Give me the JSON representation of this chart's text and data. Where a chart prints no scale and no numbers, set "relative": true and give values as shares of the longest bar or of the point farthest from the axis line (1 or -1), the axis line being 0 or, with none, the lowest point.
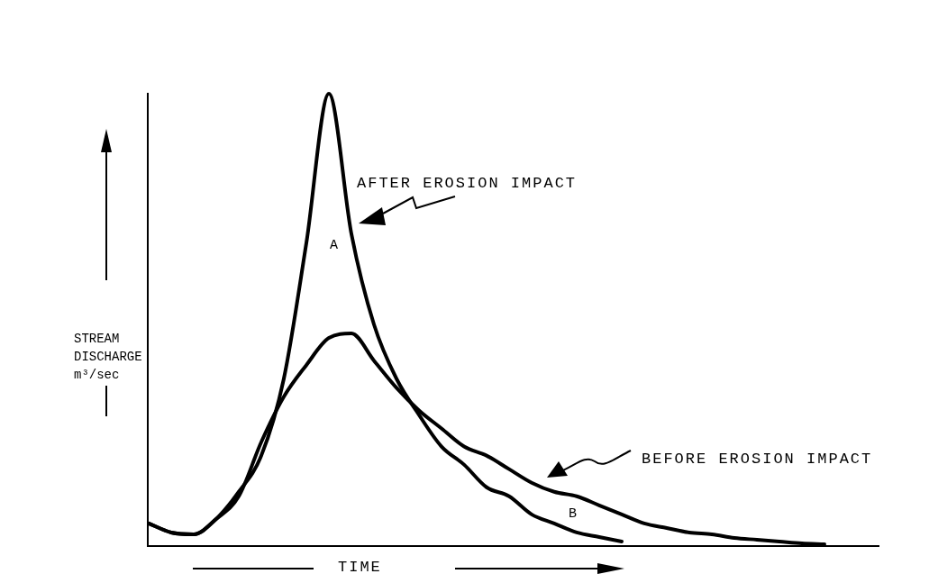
{
  "chart_data": {
    "type": "line",
    "relative": true,
    "xlabel": "TIME",
    "ylabel": "STREAM DISCHARGE m³/sec",
    "categories": [
      null,
      null,
      null,
      null,
      null,
      null,
      null,
      null,
      null,
      null,
      null,
      null,
      null,
      null,
      null,
      null,
      null,
      null,
      null,
      null,
      null,
      null,
      null,
      null,
      null,
      null,
      null,
      null,
      null,
      null,
      null
    ],
    "series": [
      {
        "name": "AFTER EROSION IMPACT",
        "color": "#000000",
        "values": [
          0.05,
          0.03,
          0.026,
          0.06,
          0.12,
          0.2,
          0.37,
          0.67,
          1,
          0.69,
          0.49,
          0.37,
          0.29,
          0.22,
          0.18,
          0.13,
          0.11,
          0.07,
          0.05,
          0.03,
          0.02,
          0.01,
          null,
          null,
          null,
          null,
          null,
          null,
          null,
          null,
          null
        ]
      },
      {
        "name": "BEFORE EROSION IMPACT",
        "color": "#000000",
        "values": [
          0.05,
          0.03,
          0.026,
          0.06,
          0.11,
          0.23,
          0.33,
          0.4,
          0.46,
          0.47,
          0.41,
          0.35,
          0.3,
          0.26,
          0.22,
          0.2,
          0.17,
          0.14,
          0.12,
          0.11,
          0.09,
          0.07,
          0.05,
          0.04,
          0.03,
          0.026,
          0.018,
          0.014,
          0.01,
          0.006,
          0.004
        ]
      }
    ],
    "annotations": [
      "A",
      "B"
    ]
  }
}
